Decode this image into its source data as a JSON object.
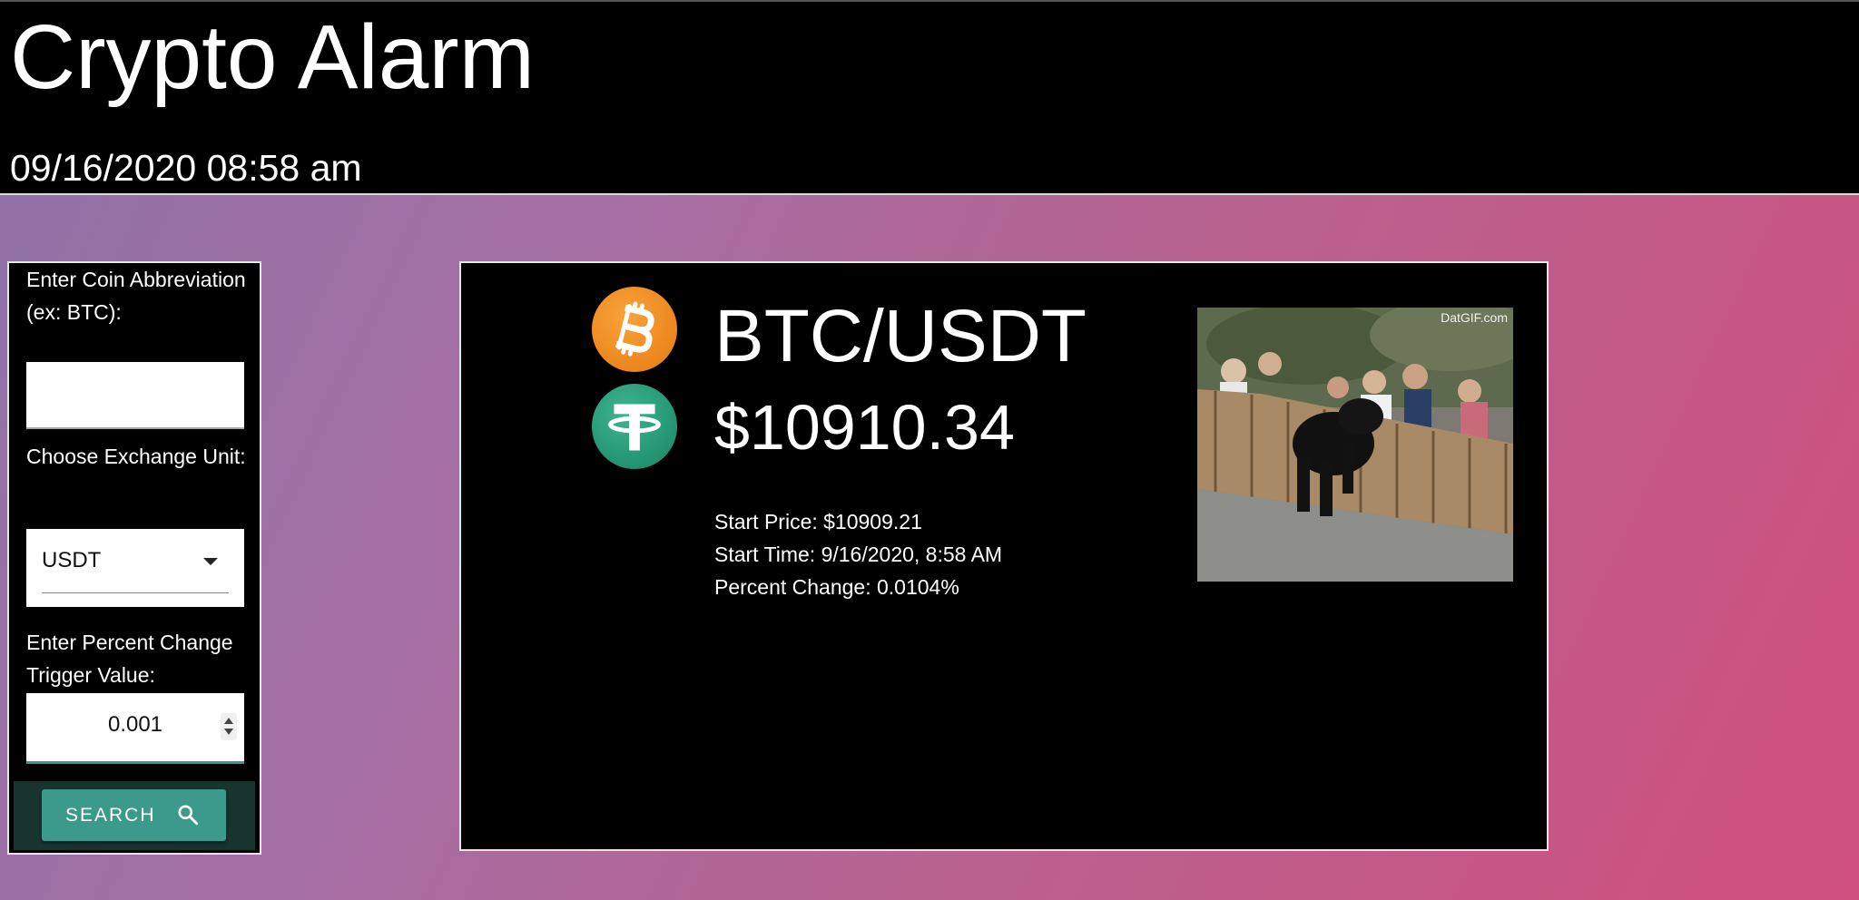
{
  "header": {
    "title": "Crypto Alarm",
    "datetime": "09/16/2020 08:58 am"
  },
  "form": {
    "coin_label": "Enter Coin Abbreviation (ex: BTC):",
    "coin_value": "",
    "exchange_label": "Choose Exchange Unit:",
    "exchange_selected": "USDT",
    "percent_label": "Enter Percent Change Trigger Value:",
    "percent_value": "0.001",
    "search_label": "SEARCH"
  },
  "ticker": {
    "pair": "BTC/USDT",
    "price": "$10910.34",
    "start_price": "Start Price: $10909.21",
    "start_time": "Start Time: 9/16/2020, 8:58 AM",
    "percent_change": "Percent Change: 0.0104%",
    "base_icon": "bitcoin-icon",
    "quote_icon": "tether-icon",
    "gif_watermark": "DatGIF.com"
  },
  "colors": {
    "header_bg": "#000000",
    "panel_bg": "#000000",
    "accent": "#3c9a8c",
    "bitcoin": "#f7931a",
    "tether": "#26a17b",
    "gradient_start": "#8f73a8",
    "gradient_end": "#cf4f7d"
  }
}
